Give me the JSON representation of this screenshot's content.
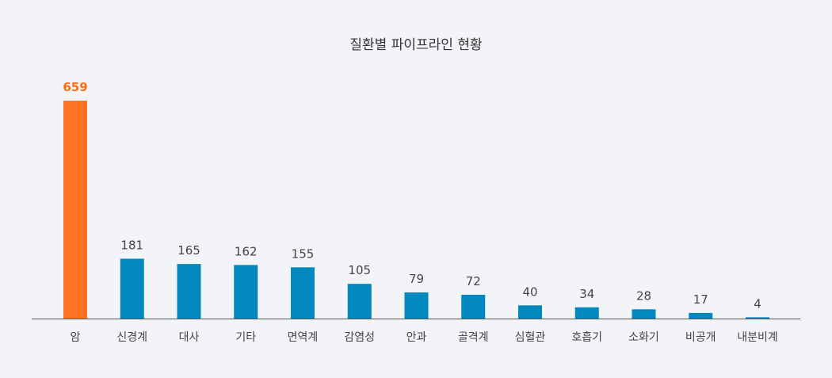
{
  "chart_data": {
    "type": "bar",
    "title": "질환별 파이프라인 현황",
    "xlabel": "",
    "ylabel": "",
    "categories": [
      "암",
      "신경계",
      "대사",
      "기타",
      "면역계",
      "감염성",
      "안과",
      "골격계",
      "심혈관",
      "호흡기",
      "소화기",
      "비공개",
      "내분비계"
    ],
    "values": [
      659,
      181,
      165,
      162,
      155,
      105,
      79,
      72,
      40,
      34,
      28,
      17,
      4
    ],
    "highlight_index": 0,
    "grid": false,
    "legend": "none",
    "colors": {
      "bar": "#0088bf",
      "highlight_bar": "#ff7222",
      "highlight_label": "#ff6a14",
      "axis": "#555555",
      "text": "#444444",
      "background": "#f3f4f8"
    }
  }
}
